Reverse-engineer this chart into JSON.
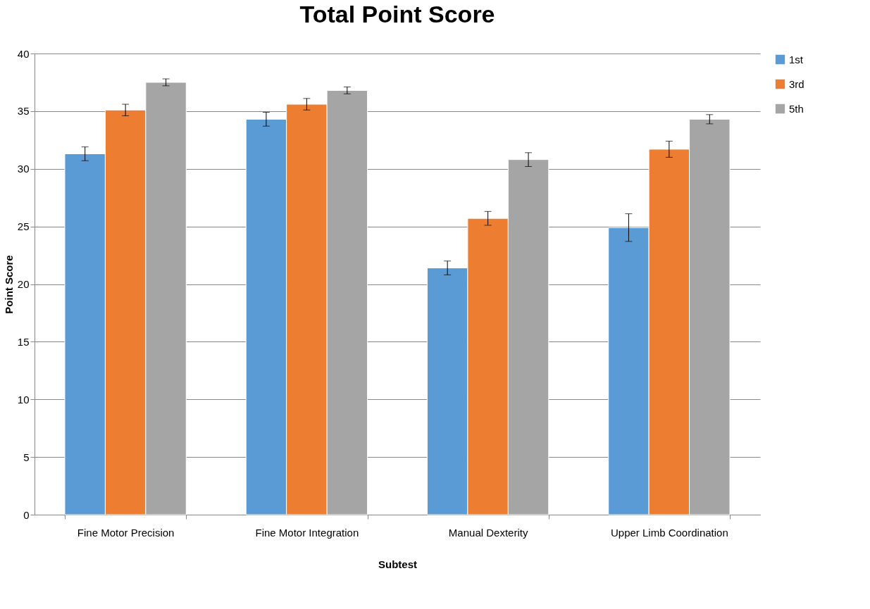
{
  "chart_data": {
    "type": "bar",
    "title": "Total Point Score",
    "xlabel": "Subtest",
    "ylabel": "Point Score",
    "categories": [
      "Fine Motor Precision",
      "Fine Motor Integration",
      "Manual Dexterity",
      "Upper Limb Coordination"
    ],
    "series": [
      {
        "name": "1st",
        "color": "#5b9bd5",
        "values": [
          31.3,
          34.3,
          21.4,
          24.9
        ],
        "errors": [
          0.6,
          0.6,
          0.6,
          1.2
        ]
      },
      {
        "name": "3rd",
        "color": "#ed7d31",
        "values": [
          35.1,
          35.6,
          25.7,
          31.7
        ],
        "errors": [
          0.5,
          0.5,
          0.6,
          0.7
        ]
      },
      {
        "name": "5th",
        "color": "#a5a5a5",
        "values": [
          37.5,
          36.8,
          30.8,
          34.3
        ],
        "errors": [
          0.3,
          0.3,
          0.6,
          0.4
        ]
      }
    ],
    "ylim": [
      0,
      40
    ],
    "yticks": [
      0,
      5,
      10,
      15,
      20,
      25,
      30,
      35,
      40
    ],
    "grid": "y",
    "legend": "right"
  }
}
